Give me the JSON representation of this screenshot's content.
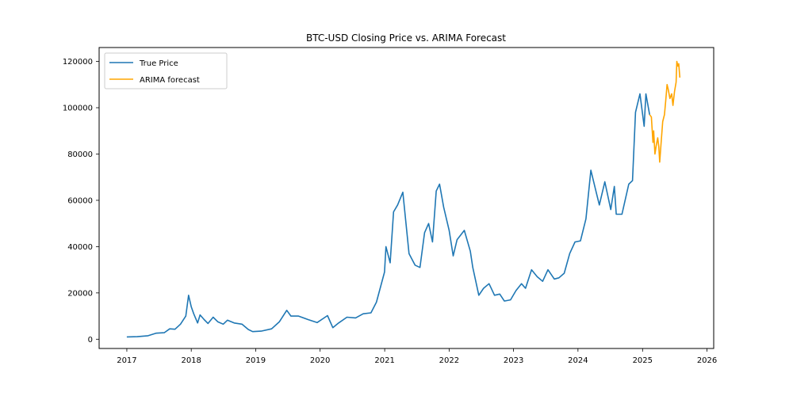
{
  "chart_data": {
    "type": "line",
    "title": "BTC-USD Closing Price vs. ARIMA Forecast",
    "xlabel": "",
    "ylabel": "",
    "x_ticks": [
      "2017",
      "2018",
      "2019",
      "2020",
      "2021",
      "2022",
      "2023",
      "2024",
      "2025",
      "2026"
    ],
    "y_ticks": [
      "0",
      "20000",
      "40000",
      "60000",
      "80000",
      "100000",
      "120000"
    ],
    "xlim": [
      "2016-07-28",
      "2026-02-08"
    ],
    "ylim": [
      -4000,
      126000
    ],
    "grid": false,
    "legend_position": "top-left",
    "series": [
      {
        "name": "True Price",
        "color": "#1f77b4",
        "x": [
          "2017-01-01",
          "2017-03-01",
          "2017-05-01",
          "2017-06-15",
          "2017-08-01",
          "2017-09-01",
          "2017-10-01",
          "2017-11-01",
          "2017-12-01",
          "2017-12-17",
          "2018-01-01",
          "2018-01-15",
          "2018-02-06",
          "2018-02-20",
          "2018-03-15",
          "2018-04-06",
          "2018-05-05",
          "2018-06-01",
          "2018-07-01",
          "2018-07-25",
          "2018-09-01",
          "2018-10-15",
          "2018-11-20",
          "2018-12-15",
          "2019-02-01",
          "2019-04-01",
          "2019-05-15",
          "2019-06-26",
          "2019-07-20",
          "2019-09-01",
          "2019-10-25",
          "2019-12-15",
          "2020-02-12",
          "2020-03-13",
          "2020-04-15",
          "2020-06-01",
          "2020-07-20",
          "2020-09-01",
          "2020-10-15",
          "2020-11-15",
          "2020-12-31",
          "2021-01-08",
          "2021-02-01",
          "2021-02-20",
          "2021-03-15",
          "2021-04-14",
          "2021-05-19",
          "2021-06-22",
          "2021-07-20",
          "2021-08-15",
          "2021-09-07",
          "2021-09-29",
          "2021-10-20",
          "2021-11-08",
          "2021-12-01",
          "2022-01-01",
          "2022-01-24",
          "2022-02-15",
          "2022-03-28",
          "2022-05-01",
          "2022-05-15",
          "2022-06-18",
          "2022-07-15",
          "2022-08-15",
          "2022-09-15",
          "2022-10-15",
          "2022-11-10",
          "2022-12-15",
          "2023-01-15",
          "2023-02-15",
          "2023-03-10",
          "2023-04-13",
          "2023-05-15",
          "2023-06-15",
          "2023-07-15",
          "2023-08-20",
          "2023-09-15",
          "2023-10-15",
          "2023-11-15",
          "2023-12-15",
          "2024-01-15",
          "2024-02-15",
          "2024-03-14",
          "2024-04-15",
          "2024-05-01",
          "2024-06-01",
          "2024-07-05",
          "2024-07-25",
          "2024-08-05",
          "2024-09-06",
          "2024-10-15",
          "2024-11-05",
          "2024-11-22",
          "2024-12-17",
          "2025-01-10",
          "2025-01-20",
          "2025-02-10"
        ],
        "values": [
          1000,
          1100,
          1500,
          2600,
          2800,
          4500,
          4300,
          6500,
          10000,
          19000,
          14000,
          11000,
          7000,
          10500,
          8500,
          6800,
          9500,
          7500,
          6500,
          8200,
          7000,
          6500,
          4200,
          3300,
          3500,
          4500,
          7500,
          12500,
          10000,
          10000,
          8500,
          7200,
          10200,
          5000,
          7000,
          9500,
          9200,
          11000,
          11400,
          16000,
          29000,
          40000,
          33000,
          55000,
          58000,
          63500,
          37000,
          32000,
          31000,
          46000,
          50000,
          42000,
          64000,
          67000,
          57000,
          47000,
          36000,
          43000,
          47000,
          38000,
          31000,
          19000,
          22000,
          24000,
          19000,
          19500,
          16500,
          17000,
          21000,
          24000,
          22000,
          30000,
          27000,
          25000,
          30000,
          26000,
          26500,
          28500,
          37000,
          42000,
          42500,
          52000,
          73000,
          63000,
          58000,
          68000,
          56000,
          66000,
          54000,
          54000,
          67000,
          68500,
          98000,
          106000,
          92000,
          106000,
          97000
        ]
      },
      {
        "name": "ARIMA forecast",
        "color": "#ffa500",
        "x": [
          "2025-02-10",
          "2025-02-20",
          "2025-03-01",
          "2025-03-05",
          "2025-03-12",
          "2025-03-20",
          "2025-03-28",
          "2025-04-03",
          "2025-04-08",
          "2025-04-15",
          "2025-04-25",
          "2025-05-05",
          "2025-05-12",
          "2025-05-20",
          "2025-05-26",
          "2025-06-05",
          "2025-06-15",
          "2025-06-22",
          "2025-07-01",
          "2025-07-10",
          "2025-07-14",
          "2025-07-20",
          "2025-07-25",
          "2025-07-31"
        ],
        "values": [
          97000,
          96000,
          85000,
          90000,
          80000,
          84000,
          87000,
          83000,
          76500,
          84000,
          94000,
          97000,
          103000,
          110000,
          108000,
          104000,
          106000,
          101000,
          107000,
          111000,
          120000,
          118000,
          119000,
          113000
        ]
      }
    ]
  }
}
